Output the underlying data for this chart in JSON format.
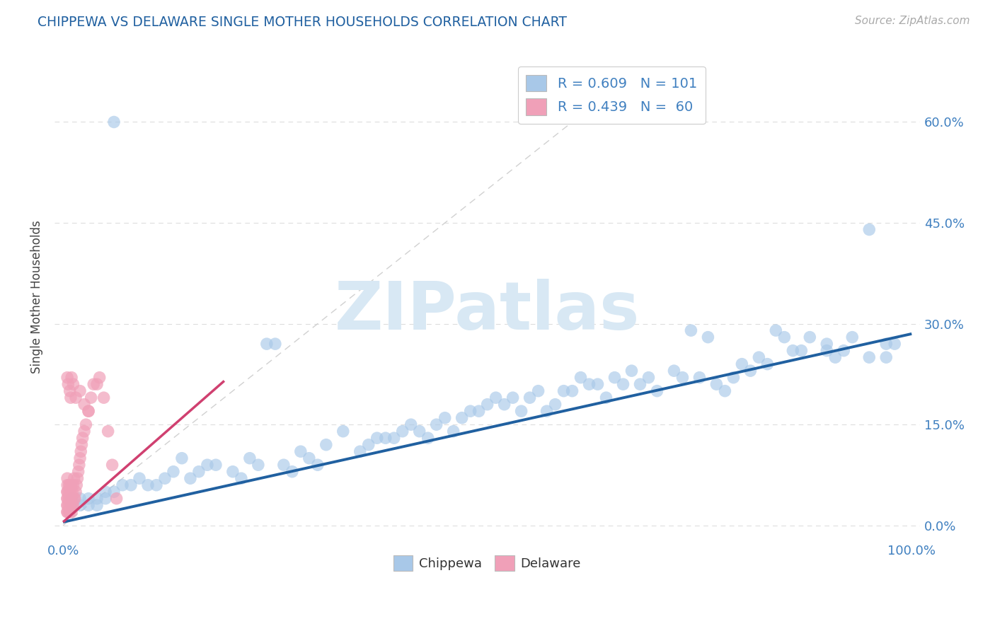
{
  "title": "CHIPPEWA VS DELAWARE SINGLE MOTHER HOUSEHOLDS CORRELATION CHART",
  "source": "Source: ZipAtlas.com",
  "ylabel": "Single Mother Households",
  "xlim": [
    -0.01,
    1.01
  ],
  "ylim": [
    -0.02,
    0.7
  ],
  "ytick_vals": [
    0.0,
    0.15,
    0.3,
    0.45,
    0.6
  ],
  "ytick_labels_right": [
    "0.0%",
    "15.0%",
    "30.0%",
    "45.0%",
    "60.0%"
  ],
  "xtick_vals": [
    0.0,
    0.1,
    0.2,
    0.3,
    0.4,
    0.5,
    0.6,
    0.7,
    0.8,
    0.9,
    1.0
  ],
  "xtick_labels": [
    "0.0%",
    "",
    "",
    "",
    "",
    "",
    "",
    "",
    "",
    "",
    "100.0%"
  ],
  "legend_r1": "R = 0.609   N = 101",
  "legend_r2": "R = 0.439   N =  60",
  "blue_color": "#A8C8E8",
  "pink_color": "#F0A0B8",
  "blue_line_color": "#2060A0",
  "pink_line_color": "#D04070",
  "diag_color": "#CCCCCC",
  "title_color": "#2060A0",
  "tick_color": "#4080C0",
  "watermark": "ZIPatlas",
  "watermark_color": "#D8E8F4",
  "grid_color": "#DDDDDD",
  "background": "#FFFFFF",
  "blue_trend_x": [
    0.0,
    1.0
  ],
  "blue_trend_y": [
    0.005,
    0.285
  ],
  "pink_trend_x": [
    0.0,
    0.19
  ],
  "pink_trend_y": [
    0.005,
    0.215
  ],
  "blue_x": [
    0.98,
    0.97,
    0.97,
    0.95,
    0.95,
    0.93,
    0.92,
    0.91,
    0.9,
    0.9,
    0.88,
    0.87,
    0.86,
    0.85,
    0.84,
    0.83,
    0.82,
    0.81,
    0.8,
    0.79,
    0.78,
    0.77,
    0.76,
    0.75,
    0.74,
    0.73,
    0.72,
    0.7,
    0.69,
    0.68,
    0.67,
    0.66,
    0.65,
    0.64,
    0.63,
    0.62,
    0.61,
    0.6,
    0.59,
    0.58,
    0.57,
    0.56,
    0.55,
    0.54,
    0.53,
    0.52,
    0.51,
    0.5,
    0.49,
    0.48,
    0.47,
    0.46,
    0.45,
    0.44,
    0.43,
    0.42,
    0.41,
    0.4,
    0.39,
    0.38,
    0.37,
    0.36,
    0.35,
    0.33,
    0.31,
    0.3,
    0.29,
    0.28,
    0.27,
    0.26,
    0.25,
    0.24,
    0.23,
    0.22,
    0.21,
    0.2,
    0.18,
    0.17,
    0.16,
    0.15,
    0.14,
    0.13,
    0.12,
    0.11,
    0.1,
    0.09,
    0.08,
    0.07,
    0.06,
    0.05,
    0.04,
    0.03,
    0.02,
    0.01,
    0.01,
    0.01,
    0.02,
    0.03,
    0.04,
    0.05,
    0.06
  ],
  "blue_y": [
    0.27,
    0.25,
    0.27,
    0.44,
    0.25,
    0.28,
    0.26,
    0.25,
    0.27,
    0.26,
    0.28,
    0.26,
    0.26,
    0.28,
    0.29,
    0.24,
    0.25,
    0.23,
    0.24,
    0.22,
    0.2,
    0.21,
    0.28,
    0.22,
    0.29,
    0.22,
    0.23,
    0.2,
    0.22,
    0.21,
    0.23,
    0.21,
    0.22,
    0.19,
    0.21,
    0.21,
    0.22,
    0.2,
    0.2,
    0.18,
    0.17,
    0.2,
    0.19,
    0.17,
    0.19,
    0.18,
    0.19,
    0.18,
    0.17,
    0.17,
    0.16,
    0.14,
    0.16,
    0.15,
    0.13,
    0.14,
    0.15,
    0.14,
    0.13,
    0.13,
    0.13,
    0.12,
    0.11,
    0.14,
    0.12,
    0.09,
    0.1,
    0.11,
    0.08,
    0.09,
    0.27,
    0.27,
    0.09,
    0.1,
    0.07,
    0.08,
    0.09,
    0.09,
    0.08,
    0.07,
    0.1,
    0.08,
    0.07,
    0.06,
    0.06,
    0.07,
    0.06,
    0.06,
    0.05,
    0.05,
    0.04,
    0.04,
    0.04,
    0.03,
    0.04,
    0.03,
    0.03,
    0.03,
    0.03,
    0.04,
    0.6
  ],
  "pink_x": [
    0.005,
    0.005,
    0.005,
    0.005,
    0.005,
    0.005,
    0.005,
    0.005,
    0.005,
    0.005,
    0.007,
    0.007,
    0.007,
    0.007,
    0.007,
    0.008,
    0.008,
    0.008,
    0.009,
    0.009,
    0.01,
    0.01,
    0.01,
    0.011,
    0.011,
    0.012,
    0.012,
    0.013,
    0.013,
    0.014,
    0.015,
    0.016,
    0.017,
    0.018,
    0.019,
    0.02,
    0.021,
    0.022,
    0.023,
    0.025,
    0.027,
    0.03,
    0.033,
    0.036,
    0.04,
    0.043,
    0.048,
    0.053,
    0.058,
    0.063,
    0.01,
    0.012,
    0.015,
    0.02,
    0.025,
    0.03,
    0.005,
    0.006,
    0.008,
    0.009
  ],
  "pink_y": [
    0.02,
    0.02,
    0.03,
    0.03,
    0.04,
    0.04,
    0.05,
    0.05,
    0.06,
    0.07,
    0.02,
    0.03,
    0.04,
    0.05,
    0.06,
    0.02,
    0.04,
    0.06,
    0.03,
    0.05,
    0.02,
    0.04,
    0.06,
    0.03,
    0.05,
    0.03,
    0.06,
    0.04,
    0.07,
    0.04,
    0.05,
    0.06,
    0.07,
    0.08,
    0.09,
    0.1,
    0.11,
    0.12,
    0.13,
    0.14,
    0.15,
    0.17,
    0.19,
    0.21,
    0.21,
    0.22,
    0.19,
    0.14,
    0.09,
    0.04,
    0.22,
    0.21,
    0.19,
    0.2,
    0.18,
    0.17,
    0.22,
    0.21,
    0.2,
    0.19
  ]
}
